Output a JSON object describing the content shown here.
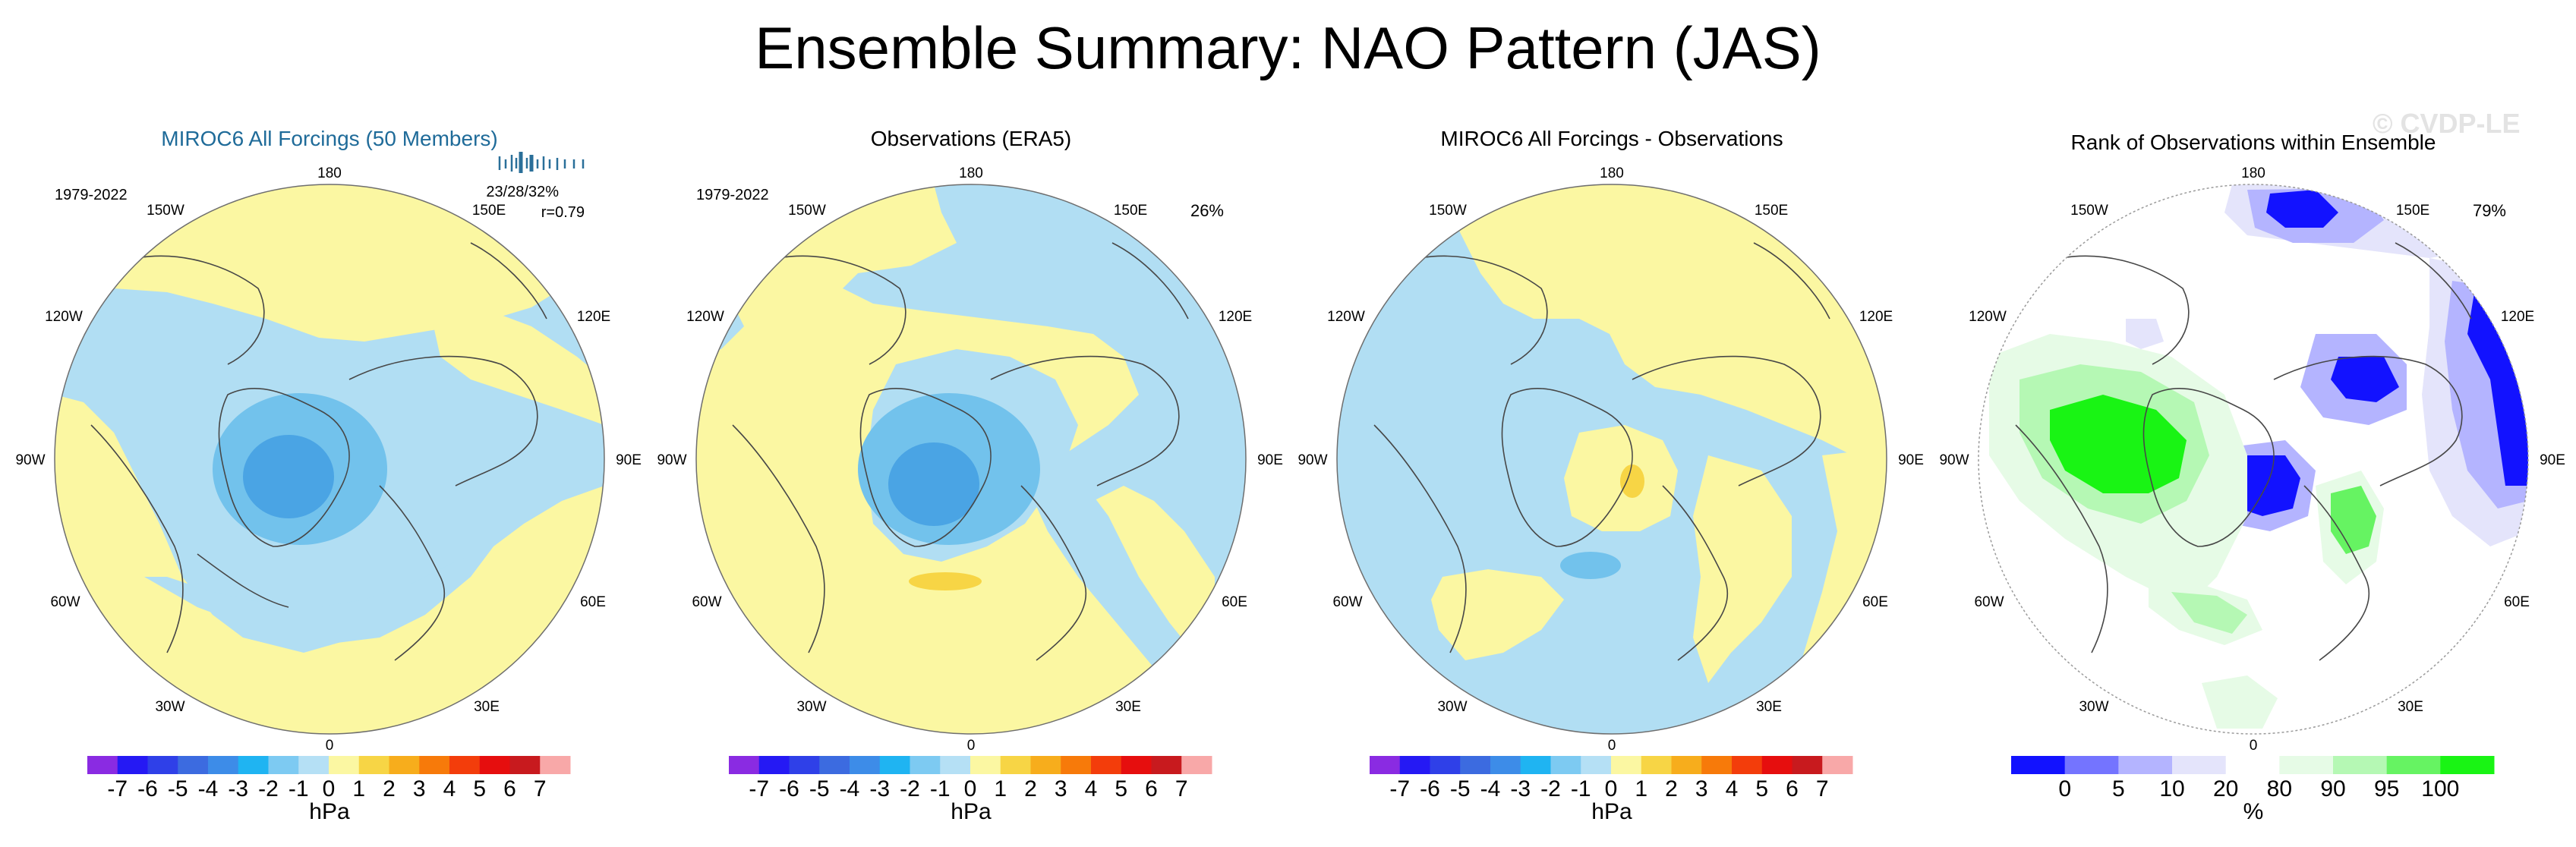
{
  "title": "Ensemble Summary: NAO Pattern (JAS)",
  "watermark": "© CVDP-LE",
  "colors": {
    "positive_weak": "#fbf7a2",
    "positive_mid": "#f7d545",
    "negative_weak": "#b1def3",
    "negative_mid": "#72c2ec",
    "negative_strong": "#4aa4e4",
    "rank_low": "#1213ff",
    "rank_high": "#19f414",
    "land_outline": "#474747",
    "title_blue": "#1f6b99"
  },
  "lon_labels": {
    "l180": "180",
    "l150w": "150W",
    "l150e": "150E",
    "l120w": "120W",
    "l120e": "120E",
    "l90w": "90W",
    "l90e": "90E",
    "l60w": "60W",
    "l60e": "60E",
    "l30w": "30W",
    "l30e": "30E",
    "l0": "0"
  },
  "panels": [
    {
      "title": "MIROC6 All Forcings (50 Members)",
      "period": "1979-2022",
      "stat_percent": "23/28/32%",
      "stat_r": "r=0.79",
      "colorbar": "diverging",
      "units": "hPa"
    },
    {
      "title": "Observations (ERA5)",
      "period": "1979-2022",
      "stat_percent": "26%",
      "colorbar": "diverging",
      "units": "hPa"
    },
    {
      "title": "MIROC6 All Forcings - Observations",
      "colorbar": "diverging",
      "units": "hPa"
    },
    {
      "title": "Rank of Observations within Ensemble",
      "stat_percent": "79%",
      "colorbar": "rank",
      "units": "%"
    }
  ],
  "chart_data": [
    {
      "type": "heatmap",
      "projection": "north-polar-stereographic",
      "title": "MIROC6 All Forcings (50 Members)",
      "period": "1979-2022",
      "variance_explained_percent": [
        23,
        28,
        32
      ],
      "pattern_correlation": 0.79,
      "units": "hPa",
      "levels": [
        -7,
        -6,
        -5,
        -4,
        -3,
        -2,
        -1,
        0,
        1,
        2,
        3,
        4,
        5,
        6,
        7
      ],
      "features": [
        {
          "region": "Greenland / Arctic",
          "sign": "negative",
          "approx_min_hPa": -3
        },
        {
          "region": "North Pacific",
          "sign": "positive",
          "approx_max_hPa": 1
        },
        {
          "region": "Eurasia / North Atlantic midlatitudes",
          "sign": "positive",
          "approx_max_hPa": 1
        }
      ]
    },
    {
      "type": "heatmap",
      "projection": "north-polar-stereographic",
      "title": "Observations (ERA5)",
      "period": "1979-2022",
      "variance_explained_percent": 26,
      "units": "hPa",
      "levels": [
        -7,
        -6,
        -5,
        -4,
        -3,
        -2,
        -1,
        0,
        1,
        2,
        3,
        4,
        5,
        6,
        7
      ],
      "features": [
        {
          "region": "Greenland / Arctic",
          "sign": "negative",
          "approx_min_hPa": -3
        },
        {
          "region": "North Atlantic / Europe",
          "sign": "positive",
          "approx_max_hPa": 2
        }
      ]
    },
    {
      "type": "heatmap",
      "projection": "north-polar-stereographic",
      "title": "MIROC6 All Forcings - Observations",
      "units": "hPa",
      "levels": [
        -7,
        -6,
        -5,
        -4,
        -3,
        -2,
        -1,
        0,
        1,
        2,
        3,
        4,
        5,
        6,
        7
      ],
      "features": [
        {
          "region": "Arctic Ocean",
          "sign": "positive",
          "approx_max_hPa": 2
        },
        {
          "region": "North Atlantic",
          "sign": "negative",
          "approx_min_hPa": -2
        }
      ]
    },
    {
      "type": "heatmap",
      "projection": "north-polar-stereographic",
      "title": "Rank of Observations within Ensemble",
      "percent_area": 79,
      "units": "%",
      "levels": [
        0,
        5,
        10,
        20,
        80,
        90,
        95,
        100
      ],
      "features": [
        {
          "region": "North America",
          "rank": "high (>95%)"
        },
        {
          "region": "Arctic / Siberia",
          "rank": "low (<5%)"
        },
        {
          "region": "North Pacific",
          "rank": "low (<5%)"
        }
      ]
    }
  ],
  "colorbars": {
    "diverging": {
      "label_text": [
        "-7",
        "-6",
        "-5",
        "-4",
        "-3",
        "-2",
        "-1",
        "0",
        "1",
        "2",
        "3",
        "4",
        "5",
        "6",
        "7"
      ],
      "colors": [
        "#8a2be2",
        "#2519f4",
        "#2f40e8",
        "#3c6be0",
        "#3d8ce8",
        "#1fb4f2",
        "#7dcaf2",
        "#b5e0f5",
        "#fbf7a2",
        "#f7d545",
        "#f7ad1c",
        "#f77a0a",
        "#f33d0b",
        "#e60e0e",
        "#c81a1e",
        "#f8a8a8"
      ]
    },
    "rank": {
      "label_text": [
        "0",
        "5",
        "10",
        "20",
        "80",
        "90",
        "95",
        "100"
      ],
      "colors": [
        "#1212ff",
        "#7474ff",
        "#b4b4ff",
        "#e4e4fb",
        "#ffffff",
        "#e6fbe6",
        "#b5f8b4",
        "#66f362",
        "#19f414"
      ]
    }
  }
}
